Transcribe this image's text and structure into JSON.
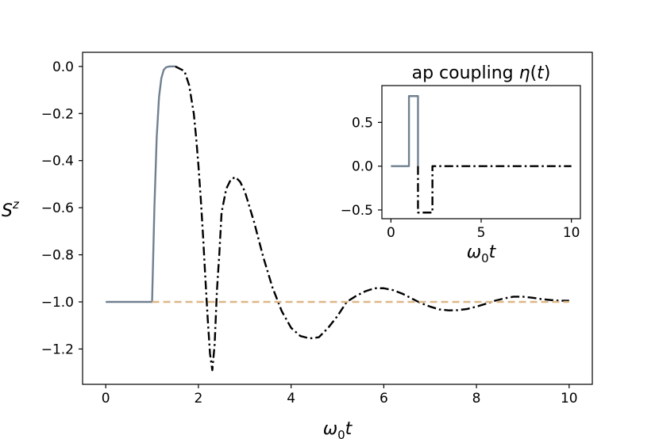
{
  "chart_data": [
    {
      "type": "line",
      "title": "",
      "xlabel": "ω₀t",
      "ylabel": "Sᶻ",
      "xlim": [
        -0.5,
        10.5
      ],
      "ylim": [
        -1.35,
        0.06
      ],
      "xticks": [
        0,
        2,
        4,
        6,
        8,
        10
      ],
      "yticks": [
        0.0,
        -0.2,
        -0.4,
        -0.6,
        -0.8,
        -1.0,
        -1.2
      ],
      "xtick_labels": [
        "0",
        "2",
        "4",
        "6",
        "8",
        "10"
      ],
      "ytick_labels": [
        "0.0",
        "−0.2",
        "−0.4",
        "−0.6",
        "−0.8",
        "−1.0",
        "−1.2"
      ],
      "grid": false,
      "series": [
        {
          "style": "solid",
          "color": "#708090",
          "x": [
            0,
            1.0,
            1.05,
            1.1,
            1.15,
            1.2,
            1.25,
            1.3,
            1.35,
            1.4,
            1.5
          ],
          "y": [
            -1.0,
            -1.0,
            -0.6,
            -0.3,
            -0.13,
            -0.05,
            -0.015,
            -0.004,
            -0.001,
            0.0,
            0.0
          ]
        },
        {
          "style": "dashdot",
          "color": "#000000",
          "x": [
            1.5,
            1.7,
            1.8,
            1.9,
            1.95,
            2.0,
            2.05,
            2.1,
            2.15,
            2.2,
            2.25,
            2.3,
            2.35,
            2.4,
            2.45,
            2.5,
            2.6,
            2.7,
            2.8,
            2.9,
            3.0,
            3.2,
            3.4,
            3.6,
            3.8,
            4.0,
            4.2,
            4.4,
            4.6,
            4.8,
            5.0,
            5.2,
            5.4,
            5.6,
            5.8,
            6.0,
            6.2,
            6.4,
            6.6,
            6.8,
            7.0,
            7.2,
            7.4,
            7.6,
            7.8,
            8.0,
            8.2,
            8.4,
            8.6,
            8.8,
            9.0,
            9.2,
            9.4,
            9.6,
            9.8,
            10.0
          ],
          "y": [
            0.0,
            -0.02,
            -0.08,
            -0.2,
            -0.3,
            -0.42,
            -0.56,
            -0.72,
            -0.9,
            -1.07,
            -1.22,
            -1.29,
            -1.18,
            -0.95,
            -0.8,
            -0.62,
            -0.52,
            -0.48,
            -0.47,
            -0.49,
            -0.53,
            -0.66,
            -0.81,
            -0.94,
            -1.04,
            -1.11,
            -1.145,
            -1.155,
            -1.15,
            -1.11,
            -1.06,
            -1.0,
            -0.975,
            -0.955,
            -0.942,
            -0.942,
            -0.95,
            -0.965,
            -0.985,
            -1.005,
            -1.02,
            -1.032,
            -1.036,
            -1.035,
            -1.03,
            -1.02,
            -1.008,
            -0.995,
            -0.985,
            -0.978,
            -0.978,
            -0.982,
            -0.988,
            -0.992,
            -0.995,
            -0.995
          ]
        },
        {
          "style": "dashed",
          "color": "#deb887",
          "x": [
            1.0,
            10.0
          ],
          "y": [
            -1.0,
            -1.0
          ]
        }
      ]
    },
    {
      "type": "line",
      "title": "ap coupling η(t)",
      "xlabel": "ω₀t",
      "ylabel": "",
      "xlim": [
        -0.5,
        10.5
      ],
      "ylim": [
        -0.6,
        0.92
      ],
      "xticks": [
        0,
        5,
        10
      ],
      "yticks": [
        0.5,
        0.0,
        -0.5
      ],
      "xtick_labels": [
        "0",
        "5",
        "10"
      ],
      "ytick_labels": [
        "0.5",
        "0.0",
        "−0.5"
      ],
      "grid": false,
      "series": [
        {
          "style": "solid",
          "color": "#708090",
          "x": [
            0,
            1.0,
            1.0,
            1.5,
            1.5
          ],
          "y": [
            0,
            0,
            0.8,
            0.8,
            0
          ]
        },
        {
          "style": "dashdot",
          "color": "#000000",
          "x": [
            1.5,
            1.5,
            2.3,
            2.3,
            10.0
          ],
          "y": [
            0,
            -0.53,
            -0.53,
            0,
            0
          ]
        }
      ]
    }
  ]
}
